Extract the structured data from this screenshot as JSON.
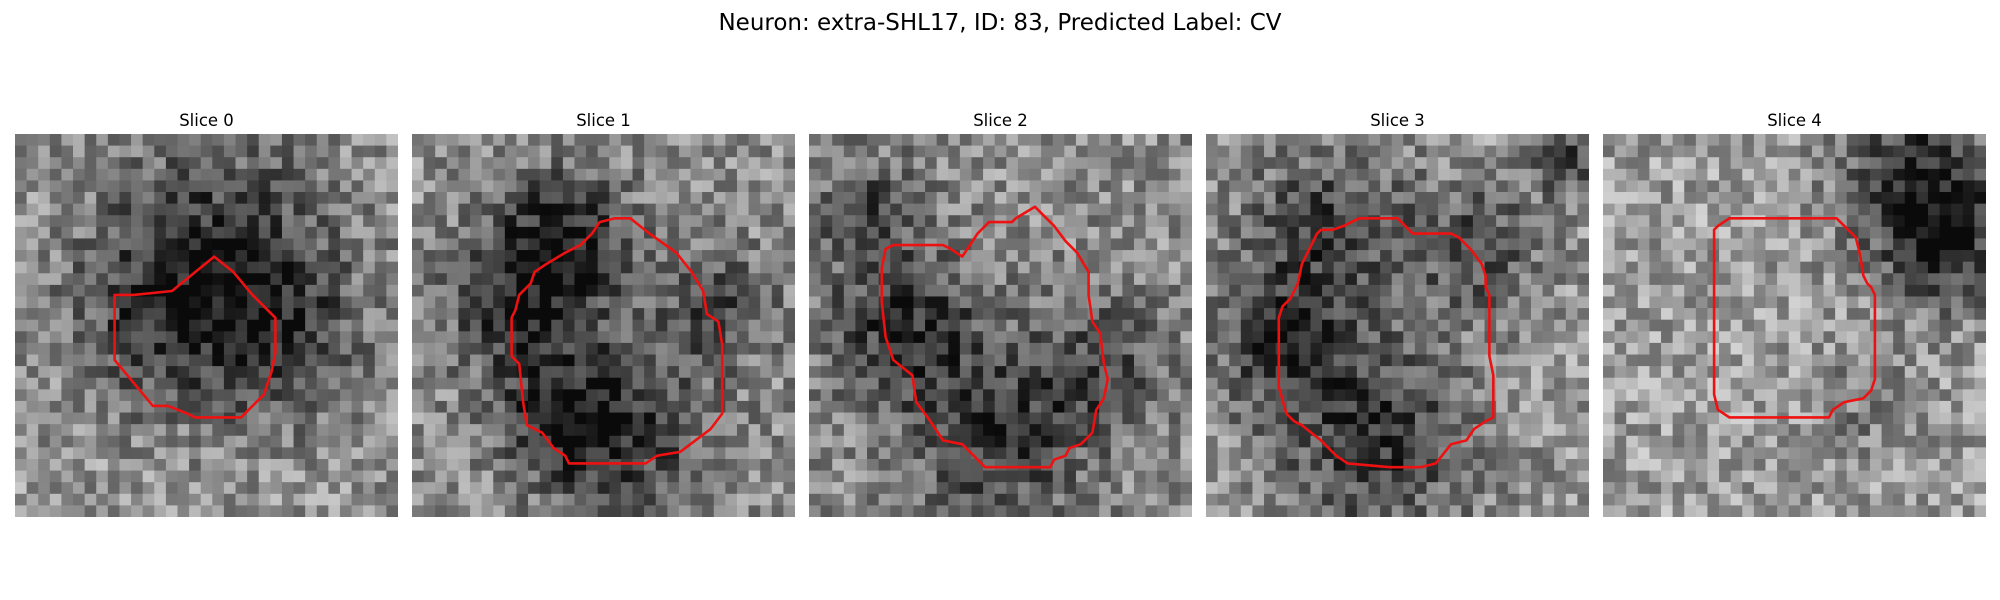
{
  "figure": {
    "title": "Neuron: extra-SHL17, ID: 83, Predicted Label: CV"
  },
  "contour_color": "#ee1111",
  "panels": [
    {
      "title": "Slice 0",
      "seed": 11,
      "brightness": 0.58,
      "dark_blobs": [
        [
          0.52,
          0.34,
          0.22,
          0.42
        ],
        [
          0.7,
          0.55,
          0.14,
          0.25
        ],
        [
          0.35,
          0.52,
          0.14,
          0.18
        ]
      ],
      "contour": [
        [
          0.26,
          0.42
        ],
        [
          0.31,
          0.42
        ],
        [
          0.41,
          0.41
        ],
        [
          0.52,
          0.32
        ],
        [
          0.57,
          0.36
        ],
        [
          0.62,
          0.42
        ],
        [
          0.68,
          0.48
        ],
        [
          0.68,
          0.57
        ],
        [
          0.67,
          0.62
        ],
        [
          0.65,
          0.68
        ],
        [
          0.62,
          0.71
        ],
        [
          0.59,
          0.74
        ],
        [
          0.47,
          0.74
        ],
        [
          0.45,
          0.73
        ],
        [
          0.4,
          0.71
        ],
        [
          0.36,
          0.71
        ],
        [
          0.26,
          0.59
        ]
      ]
    },
    {
      "title": "Slice 1",
      "seed": 23,
      "brightness": 0.56,
      "dark_blobs": [
        [
          0.3,
          0.45,
          0.14,
          0.4
        ],
        [
          0.4,
          0.25,
          0.12,
          0.35
        ],
        [
          0.55,
          0.78,
          0.16,
          0.35
        ],
        [
          0.8,
          0.45,
          0.1,
          0.3
        ],
        [
          0.38,
          0.75,
          0.1,
          0.3
        ]
      ],
      "contour": [
        [
          0.35,
          0.34
        ],
        [
          0.4,
          0.31
        ],
        [
          0.44,
          0.29
        ],
        [
          0.47,
          0.26
        ],
        [
          0.49,
          0.23
        ],
        [
          0.53,
          0.22
        ],
        [
          0.57,
          0.22
        ],
        [
          0.62,
          0.26
        ],
        [
          0.69,
          0.31
        ],
        [
          0.73,
          0.36
        ],
        [
          0.76,
          0.41
        ],
        [
          0.77,
          0.47
        ],
        [
          0.8,
          0.49
        ],
        [
          0.81,
          0.55
        ],
        [
          0.81,
          0.65
        ],
        [
          0.81,
          0.73
        ],
        [
          0.78,
          0.77
        ],
        [
          0.74,
          0.8
        ],
        [
          0.7,
          0.83
        ],
        [
          0.64,
          0.84
        ],
        [
          0.61,
          0.86
        ],
        [
          0.54,
          0.86
        ],
        [
          0.5,
          0.86
        ],
        [
          0.41,
          0.86
        ],
        [
          0.4,
          0.84
        ],
        [
          0.37,
          0.82
        ],
        [
          0.34,
          0.78
        ],
        [
          0.3,
          0.76
        ],
        [
          0.29,
          0.7
        ],
        [
          0.28,
          0.6
        ],
        [
          0.26,
          0.58
        ],
        [
          0.26,
          0.48
        ],
        [
          0.27,
          0.46
        ],
        [
          0.28,
          0.42
        ],
        [
          0.31,
          0.39
        ],
        [
          0.32,
          0.36
        ]
      ]
    },
    {
      "title": "Slice 2",
      "seed": 37,
      "brightness": 0.55,
      "dark_blobs": [
        [
          0.25,
          0.5,
          0.14,
          0.35
        ],
        [
          0.5,
          0.78,
          0.16,
          0.35
        ],
        [
          0.78,
          0.6,
          0.12,
          0.25
        ],
        [
          0.15,
          0.2,
          0.1,
          0.25
        ]
      ],
      "contour": [
        [
          0.2,
          0.3
        ],
        [
          0.22,
          0.29
        ],
        [
          0.25,
          0.29
        ],
        [
          0.29,
          0.29
        ],
        [
          0.35,
          0.29
        ],
        [
          0.37,
          0.3
        ],
        [
          0.4,
          0.32
        ],
        [
          0.42,
          0.29
        ],
        [
          0.44,
          0.26
        ],
        [
          0.47,
          0.23
        ],
        [
          0.53,
          0.23
        ],
        [
          0.54,
          0.22
        ],
        [
          0.59,
          0.19
        ],
        [
          0.61,
          0.21
        ],
        [
          0.64,
          0.24
        ],
        [
          0.67,
          0.28
        ],
        [
          0.7,
          0.31
        ],
        [
          0.73,
          0.36
        ],
        [
          0.73,
          0.42
        ],
        [
          0.74,
          0.49
        ],
        [
          0.76,
          0.52
        ],
        [
          0.77,
          0.6
        ],
        [
          0.78,
          0.64
        ],
        [
          0.77,
          0.69
        ],
        [
          0.75,
          0.72
        ],
        [
          0.74,
          0.78
        ],
        [
          0.71,
          0.81
        ],
        [
          0.68,
          0.82
        ],
        [
          0.67,
          0.84
        ],
        [
          0.64,
          0.85
        ],
        [
          0.63,
          0.87
        ],
        [
          0.53,
          0.87
        ],
        [
          0.46,
          0.87
        ],
        [
          0.45,
          0.86
        ],
        [
          0.43,
          0.84
        ],
        [
          0.4,
          0.81
        ],
        [
          0.35,
          0.8
        ],
        [
          0.31,
          0.74
        ],
        [
          0.28,
          0.7
        ],
        [
          0.27,
          0.63
        ],
        [
          0.22,
          0.59
        ],
        [
          0.2,
          0.53
        ],
        [
          0.19,
          0.44
        ],
        [
          0.19,
          0.35
        ]
      ]
    },
    {
      "title": "Slice 3",
      "seed": 51,
      "brightness": 0.6,
      "dark_blobs": [
        [
          0.32,
          0.25,
          0.16,
          0.35
        ],
        [
          0.2,
          0.55,
          0.12,
          0.4
        ],
        [
          0.45,
          0.8,
          0.18,
          0.4
        ],
        [
          0.72,
          0.3,
          0.12,
          0.3
        ],
        [
          0.95,
          0.05,
          0.08,
          0.3
        ]
      ],
      "contour": [
        [
          0.29,
          0.26
        ],
        [
          0.3,
          0.25
        ],
        [
          0.33,
          0.25
        ],
        [
          0.36,
          0.24
        ],
        [
          0.38,
          0.23
        ],
        [
          0.4,
          0.22
        ],
        [
          0.47,
          0.22
        ],
        [
          0.5,
          0.22
        ],
        [
          0.52,
          0.24
        ],
        [
          0.54,
          0.26
        ],
        [
          0.58,
          0.26
        ],
        [
          0.64,
          0.26
        ],
        [
          0.66,
          0.27
        ],
        [
          0.69,
          0.3
        ],
        [
          0.72,
          0.34
        ],
        [
          0.73,
          0.37
        ],
        [
          0.73,
          0.4
        ],
        [
          0.74,
          0.42
        ],
        [
          0.74,
          0.58
        ],
        [
          0.75,
          0.63
        ],
        [
          0.75,
          0.74
        ],
        [
          0.73,
          0.75
        ],
        [
          0.7,
          0.77
        ],
        [
          0.68,
          0.8
        ],
        [
          0.64,
          0.81
        ],
        [
          0.6,
          0.86
        ],
        [
          0.56,
          0.87
        ],
        [
          0.48,
          0.87
        ],
        [
          0.37,
          0.86
        ],
        [
          0.34,
          0.84
        ],
        [
          0.3,
          0.8
        ],
        [
          0.25,
          0.76
        ],
        [
          0.23,
          0.75
        ],
        [
          0.21,
          0.73
        ],
        [
          0.19,
          0.66
        ],
        [
          0.19,
          0.57
        ],
        [
          0.19,
          0.48
        ],
        [
          0.2,
          0.45
        ],
        [
          0.22,
          0.43
        ],
        [
          0.24,
          0.39
        ],
        [
          0.25,
          0.34
        ],
        [
          0.26,
          0.32
        ]
      ]
    },
    {
      "title": "Slice 4",
      "seed": 67,
      "brightness": 0.62,
      "dark_blobs": [
        [
          0.82,
          0.12,
          0.14,
          0.45
        ],
        [
          0.9,
          0.3,
          0.12,
          0.35
        ],
        [
          0.7,
          0.7,
          0.1,
          0.15
        ]
      ],
      "contour": [
        [
          0.29,
          0.25
        ],
        [
          0.3,
          0.24
        ],
        [
          0.33,
          0.22
        ],
        [
          0.37,
          0.22
        ],
        [
          0.44,
          0.22
        ],
        [
          0.53,
          0.22
        ],
        [
          0.58,
          0.22
        ],
        [
          0.61,
          0.22
        ],
        [
          0.63,
          0.24
        ],
        [
          0.66,
          0.27
        ],
        [
          0.67,
          0.31
        ],
        [
          0.68,
          0.37
        ],
        [
          0.69,
          0.39
        ],
        [
          0.7,
          0.4
        ],
        [
          0.71,
          0.42
        ],
        [
          0.71,
          0.61
        ],
        [
          0.71,
          0.64
        ],
        [
          0.7,
          0.67
        ],
        [
          0.68,
          0.69
        ],
        [
          0.63,
          0.7
        ],
        [
          0.6,
          0.72
        ],
        [
          0.59,
          0.74
        ],
        [
          0.53,
          0.74
        ],
        [
          0.45,
          0.74
        ],
        [
          0.39,
          0.74
        ],
        [
          0.33,
          0.74
        ],
        [
          0.3,
          0.72
        ],
        [
          0.29,
          0.68
        ],
        [
          0.29,
          0.52
        ],
        [
          0.29,
          0.41
        ]
      ]
    }
  ]
}
